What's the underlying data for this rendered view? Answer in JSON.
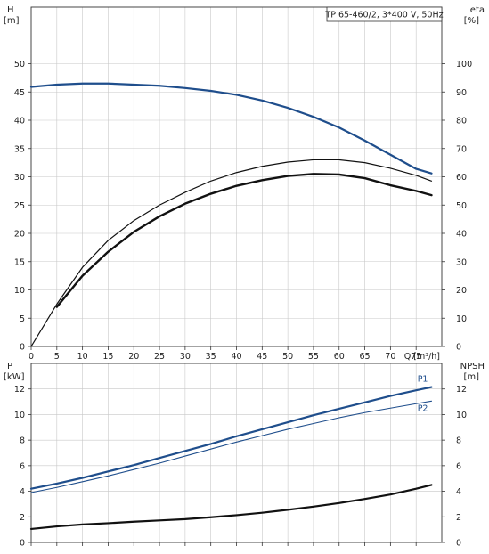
{
  "chart_data": [
    {
      "type": "line",
      "title": "TP 65-460/2, 3*400 V, 50Hz",
      "xlabel": "Q [m³/h]",
      "xlim": [
        0,
        80
      ],
      "x_ticks": [
        0,
        5,
        10,
        15,
        20,
        25,
        30,
        35,
        40,
        45,
        50,
        55,
        60,
        65,
        70,
        75
      ],
      "y_left": {
        "label_top": "H",
        "label_unit": "[m]",
        "range": [
          0,
          60
        ],
        "ticks": [
          0,
          5,
          10,
          15,
          20,
          25,
          30,
          35,
          40,
          45,
          50
        ]
      },
      "y_right": {
        "label_top": "eta",
        "label_unit": "[%]",
        "range": [
          0,
          120
        ],
        "ticks": [
          0,
          10,
          20,
          30,
          40,
          50,
          60,
          70,
          80,
          90,
          100
        ]
      },
      "grid": true,
      "series": [
        {
          "axis": "left",
          "color": "#1f4e8c",
          "width": 2.2,
          "x": [
            0,
            5,
            10,
            15,
            20,
            25,
            30,
            35,
            40,
            45,
            50,
            55,
            60,
            65,
            70,
            75,
            78
          ],
          "y": [
            45.9,
            46.3,
            46.5,
            46.5,
            46.3,
            46.1,
            45.7,
            45.2,
            44.5,
            43.5,
            42.2,
            40.6,
            38.7,
            36.4,
            33.9,
            31.4,
            30.6
          ]
        },
        {
          "axis": "right",
          "color": "#111111",
          "width": 1.2,
          "x": [
            0,
            5,
            10,
            15,
            20,
            25,
            30,
            35,
            40,
            45,
            50,
            55,
            60,
            65,
            70,
            75,
            78
          ],
          "y": [
            0,
            15,
            28,
            37.5,
            44.5,
            50,
            54.5,
            58.5,
            61.5,
            63.7,
            65.2,
            66,
            66,
            65,
            63,
            60.5,
            58.5
          ]
        },
        {
          "axis": "right",
          "color": "#111111",
          "width": 2.4,
          "x": [
            5,
            10,
            15,
            20,
            25,
            30,
            35,
            40,
            45,
            50,
            55,
            60,
            65,
            70,
            75,
            78
          ],
          "y": [
            14,
            25,
            33.5,
            40.5,
            46,
            50.5,
            54,
            56.8,
            58.8,
            60.3,
            61,
            60.8,
            59.5,
            57,
            55,
            53.5
          ]
        }
      ]
    },
    {
      "type": "line",
      "xlim": [
        0,
        80
      ],
      "y_left": {
        "label_top": "P",
        "label_unit": "[kW]",
        "range": [
          0,
          14
        ],
        "ticks": [
          0,
          2,
          4,
          6,
          8,
          10,
          12
        ]
      },
      "y_right": {
        "label_top": "NPSH",
        "label_unit": "[m]",
        "range": [
          0,
          14
        ],
        "ticks": [
          0,
          2,
          4,
          6,
          8,
          10,
          12
        ]
      },
      "grid": true,
      "series": [
        {
          "name": "P1",
          "axis": "left",
          "color": "#1f4e8c",
          "width": 2.2,
          "x": [
            0,
            5,
            10,
            15,
            20,
            25,
            30,
            35,
            40,
            45,
            50,
            55,
            60,
            65,
            70,
            75,
            78
          ],
          "y": [
            4.2,
            4.6,
            5.05,
            5.55,
            6.05,
            6.6,
            7.15,
            7.7,
            8.3,
            8.85,
            9.4,
            9.95,
            10.45,
            10.95,
            11.45,
            11.9,
            12.15
          ]
        },
        {
          "name": "P2",
          "axis": "left",
          "color": "#1f4e8c",
          "width": 1.1,
          "x": [
            0,
            5,
            10,
            15,
            20,
            25,
            30,
            35,
            40,
            45,
            50,
            55,
            60,
            65,
            70,
            75,
            78
          ],
          "y": [
            3.9,
            4.3,
            4.75,
            5.2,
            5.7,
            6.2,
            6.75,
            7.3,
            7.85,
            8.35,
            8.85,
            9.3,
            9.75,
            10.15,
            10.5,
            10.85,
            11.05
          ]
        },
        {
          "axis": "right",
          "color": "#111111",
          "width": 2.2,
          "x": [
            0,
            5,
            10,
            15,
            20,
            25,
            30,
            35,
            40,
            45,
            50,
            55,
            60,
            65,
            70,
            75,
            78
          ],
          "y": [
            1.05,
            1.25,
            1.4,
            1.5,
            1.62,
            1.72,
            1.82,
            1.97,
            2.13,
            2.32,
            2.55,
            2.8,
            3.08,
            3.4,
            3.75,
            4.2,
            4.5
          ]
        }
      ]
    }
  ]
}
